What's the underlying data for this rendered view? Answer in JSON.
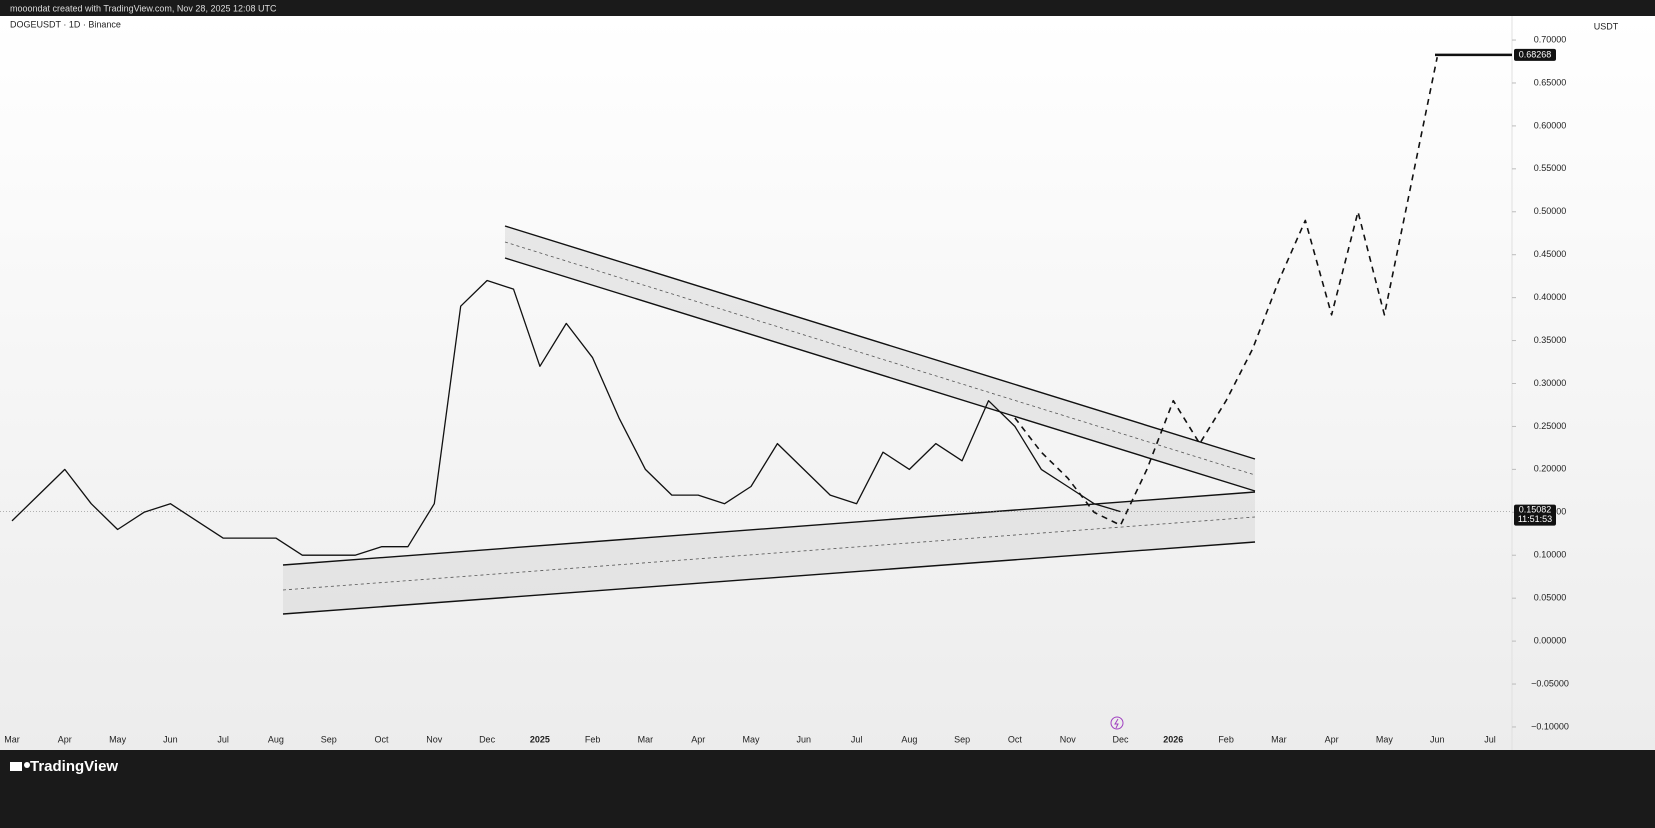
{
  "header": {
    "credit": "mooondat created with TradingView.com, Nov 28, 2025 12:08 UTC",
    "symbol": "DOGEUSDT · 1D · Binance",
    "currency": "USDT",
    "countdown": "11:51:53",
    "brand": "TradingView"
  },
  "chart_data": {
    "type": "line",
    "categories": [
      "Mar",
      null,
      "Apr",
      null,
      "May",
      null,
      "Jun",
      null,
      "Jul",
      null,
      "Aug",
      null,
      "Sep",
      null,
      "Oct",
      null,
      "Nov",
      null,
      "Dec",
      null,
      "2025",
      null,
      "Feb",
      null,
      "Mar",
      null,
      "Apr",
      null,
      "May",
      null,
      "Jun",
      null,
      "Jul",
      null,
      "Aug",
      null,
      "Sep",
      null,
      "Oct",
      null,
      "Nov",
      null,
      "Dec",
      null,
      "2026",
      null,
      "Feb",
      null,
      "Mar",
      null,
      "Apr",
      null,
      "May",
      null,
      "Jun",
      null,
      "Jul"
    ],
    "series": [
      {
        "name": "DOGEUSDT",
        "color": "#111111",
        "style": "solid",
        "values": [
          0.14,
          0.17,
          0.2,
          0.16,
          0.13,
          0.15,
          0.16,
          0.14,
          0.12,
          0.12,
          0.12,
          0.1,
          0.1,
          0.1,
          0.11,
          0.11,
          0.16,
          0.39,
          0.42,
          0.41,
          0.32,
          0.37,
          0.33,
          0.26,
          0.2,
          0.17,
          0.17,
          0.16,
          0.18,
          0.23,
          0.2,
          0.17,
          0.16,
          0.22,
          0.2,
          0.23,
          0.21,
          0.28,
          0.25,
          0.2,
          0.18,
          0.16,
          0.15082,
          null,
          null,
          null,
          null,
          null,
          null,
          null,
          null,
          null,
          null,
          null,
          null,
          null,
          null
        ]
      },
      {
        "name": "Projection",
        "color": "#111111",
        "style": "dashed",
        "values": [
          null,
          null,
          null,
          null,
          null,
          null,
          null,
          null,
          null,
          null,
          null,
          null,
          null,
          null,
          null,
          null,
          null,
          null,
          null,
          null,
          null,
          null,
          null,
          null,
          null,
          null,
          null,
          null,
          null,
          null,
          null,
          null,
          null,
          null,
          null,
          null,
          null,
          null,
          0.26,
          0.22,
          0.19,
          0.15,
          0.135,
          0.2,
          0.28,
          0.23,
          0.28,
          0.34,
          0.42,
          0.49,
          0.38,
          0.5,
          0.38,
          0.53,
          0.68,
          null,
          null
        ]
      }
    ],
    "last_price": 0.15082,
    "target_price": 0.68268,
    "ylim": [
      -0.121,
      0.728
    ],
    "yticks": [
      {
        "value": 0.7,
        "label": "0.70000"
      },
      {
        "value": 0.65,
        "label": "0.65000"
      },
      {
        "value": 0.6,
        "label": "0.60000"
      },
      {
        "value": 0.55,
        "label": "0.55000"
      },
      {
        "value": 0.5,
        "label": "0.50000"
      },
      {
        "value": 0.45,
        "label": "0.45000"
      },
      {
        "value": 0.4,
        "label": "0.40000"
      },
      {
        "value": 0.35,
        "label": "0.35000"
      },
      {
        "value": 0.3,
        "label": "0.30000"
      },
      {
        "value": 0.25,
        "label": "0.25000"
      },
      {
        "value": 0.2,
        "label": "0.20000"
      },
      {
        "value": 0.15,
        "label": "0.15000"
      },
      {
        "value": 0.1,
        "label": "0.10000"
      },
      {
        "value": 0.05,
        "label": "0.05000"
      },
      {
        "value": 0,
        "label": "0.00000"
      },
      {
        "value": -0.05,
        "label": "−0.05000"
      },
      {
        "value": -0.1,
        "label": "−0.10000"
      }
    ],
    "grid": false
  }
}
